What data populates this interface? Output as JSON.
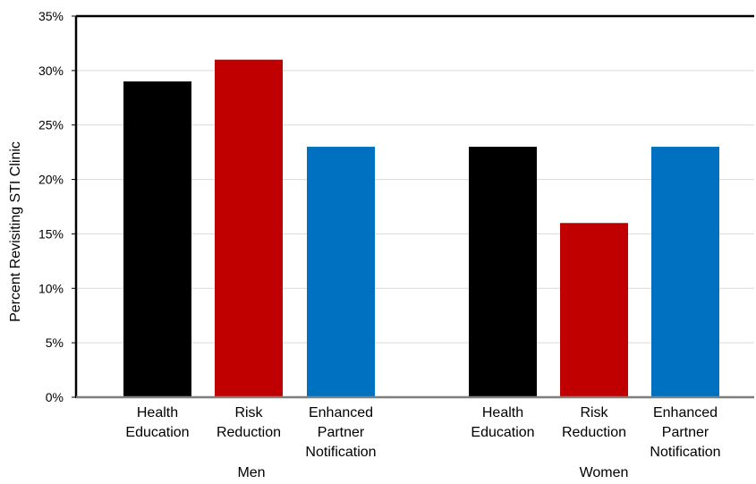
{
  "chart_data": {
    "type": "bar",
    "title": "",
    "ylabel": "Percent Revisiting STI Clinic",
    "xlabel": "",
    "ylim": [
      0,
      35
    ],
    "ytick_step": 5,
    "ytick_labels": [
      "0%",
      "5%",
      "10%",
      "15%",
      "20%",
      "25%",
      "30%",
      "35%"
    ],
    "grid": true,
    "legend": "none",
    "groups": [
      {
        "name": "Men",
        "categories": [
          [
            "Health",
            "Education"
          ],
          [
            "Risk",
            "Reduction"
          ],
          [
            "Enhanced",
            "Partner",
            "Notification"
          ]
        ],
        "values": [
          29,
          31,
          23
        ]
      },
      {
        "name": "Women",
        "categories": [
          [
            "Health",
            "Education"
          ],
          [
            "Risk",
            "Reduction"
          ],
          [
            "Enhanced",
            "Partner",
            "Notification"
          ]
        ],
        "values": [
          23,
          16,
          23
        ]
      }
    ],
    "bar_colors": [
      "#000000",
      "#c00000",
      "#0070c0"
    ],
    "grid_color": "#d9d9d9",
    "axis_color": "#000000"
  }
}
